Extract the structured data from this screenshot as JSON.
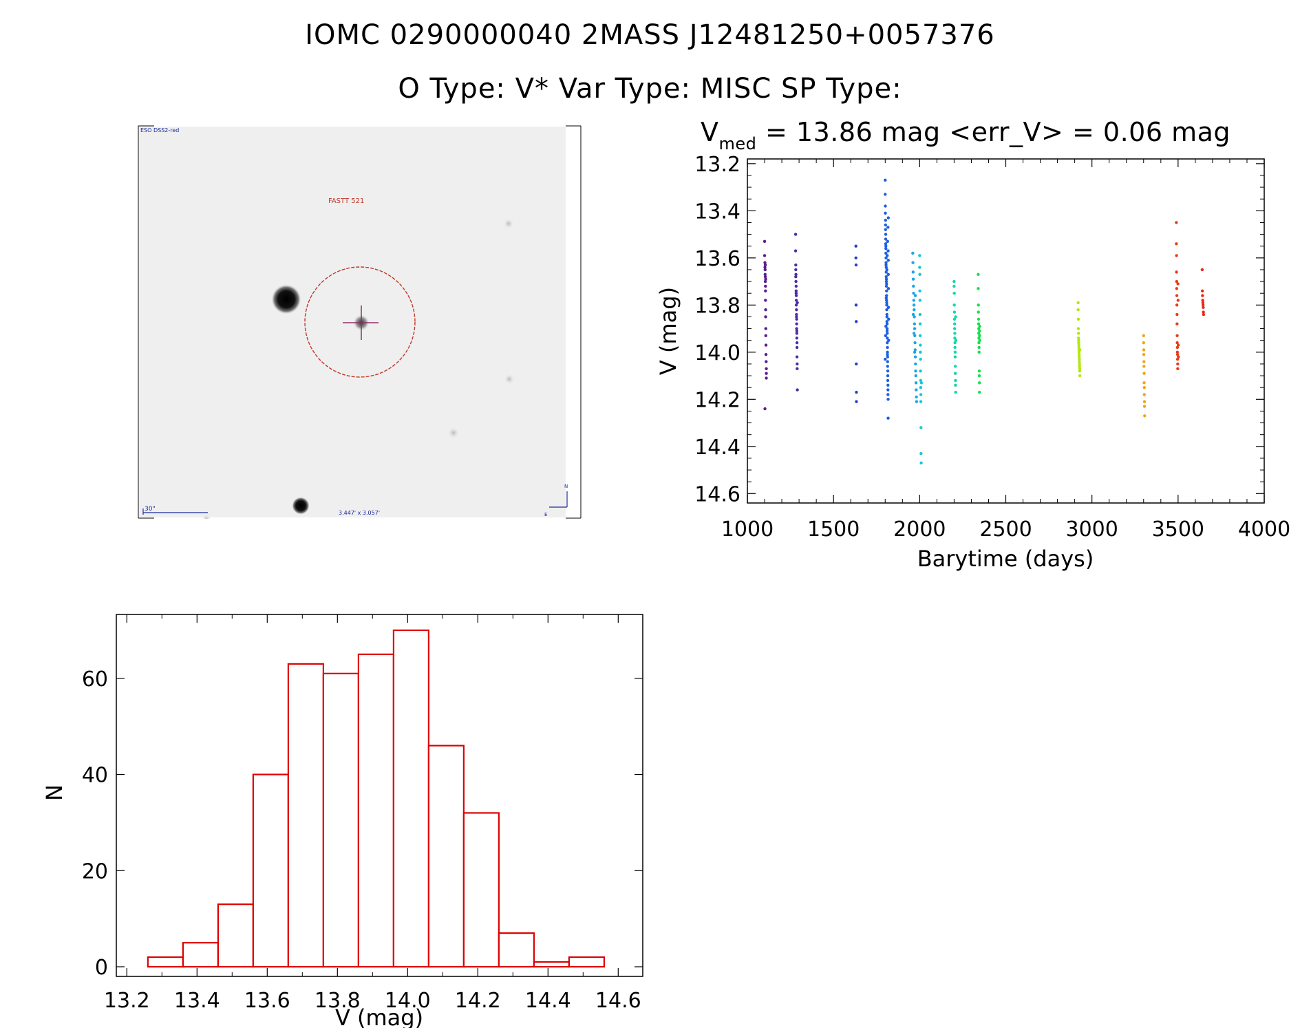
{
  "header": {
    "line1": "IOMC 0290000040    2MASS J12481250+0057376",
    "line2": "O Type: V*  Var Type: MISC  SP Type:"
  },
  "finder": {
    "survey_label": "ESO DSS2-red",
    "target_label": "FASTT 521",
    "scale_label": "30\"",
    "fov_label": "3.447' x 3.057'",
    "north_label": "N",
    "east_label": "E",
    "colors": {
      "circle": "#c0392b",
      "cross": "#8e2a6a",
      "labels": "#1a2a9a"
    }
  },
  "chart_data": [
    {
      "type": "scatter",
      "title_main": "V",
      "title_sub": "med",
      "title_rest": " = 13.86 mag <err_V> = 0.06 mag",
      "xlabel": "Barytime (days)",
      "ylabel": "V (mag)",
      "xlim": [
        1000,
        4000
      ],
      "ylim": [
        14.64,
        13.18
      ],
      "xticks": [
        "1000",
        "1500",
        "2000",
        "2500",
        "3000",
        "3500",
        "4000"
      ],
      "yticks": [
        "13.2",
        "13.4",
        "13.6",
        "13.8",
        "14.0",
        "14.2",
        "14.4",
        "14.6"
      ],
      "series": [
        {
          "color": "#5a1e8c",
          "x": [
            1100,
            1100,
            1102,
            1102,
            1103,
            1103,
            1104,
            1104,
            1105,
            1105,
            1105,
            1106,
            1106,
            1107,
            1107,
            1108,
            1108,
            1109,
            1110,
            1110,
            1110,
            1102,
            1104,
            1106
          ],
          "y": [
            13.53,
            13.59,
            13.62,
            13.64,
            13.65,
            13.67,
            13.68,
            13.7,
            13.72,
            13.74,
            13.78,
            13.82,
            13.85,
            13.9,
            13.93,
            13.97,
            14.01,
            14.04,
            14.07,
            14.09,
            14.11,
            14.24,
            13.63,
            13.69
          ]
        },
        {
          "color": "#4a2ea8",
          "x": [
            1280,
            1280,
            1281,
            1281,
            1282,
            1282,
            1283,
            1283,
            1284,
            1284,
            1284,
            1285,
            1285,
            1286,
            1286,
            1286,
            1287,
            1287,
            1288,
            1288,
            1288,
            1289,
            1289,
            1290,
            1290,
            1281,
            1283,
            1285,
            1287
          ],
          "y": [
            13.5,
            13.57,
            13.63,
            13.65,
            13.67,
            13.7,
            13.72,
            13.74,
            13.76,
            13.78,
            13.8,
            13.82,
            13.84,
            13.86,
            13.88,
            13.9,
            13.92,
            13.94,
            13.96,
            13.98,
            14.02,
            14.05,
            14.07,
            14.16,
            13.79,
            13.68,
            13.75,
            13.85,
            13.91
          ]
        },
        {
          "color": "#2a3fc8",
          "x": [
            1630,
            1630,
            1631,
            1631,
            1632,
            1632,
            1633,
            1633
          ],
          "y": [
            13.55,
            13.6,
            13.63,
            13.8,
            13.87,
            14.05,
            14.17,
            14.21
          ]
        },
        {
          "color": "#1c5fe0",
          "x": [
            1800,
            1800,
            1801,
            1801,
            1802,
            1802,
            1802,
            1803,
            1803,
            1803,
            1804,
            1804,
            1804,
            1805,
            1805,
            1805,
            1806,
            1806,
            1806,
            1807,
            1807,
            1807,
            1808,
            1808,
            1808,
            1809,
            1809,
            1809,
            1810,
            1810,
            1810,
            1811,
            1811,
            1811,
            1812,
            1812,
            1812,
            1813,
            1813,
            1813,
            1814,
            1814,
            1814,
            1815,
            1815,
            1815,
            1816,
            1816,
            1816,
            1817,
            1817,
            1817,
            1818,
            1818,
            1819,
            1819,
            1820,
            1820,
            1800,
            1802,
            1804,
            1806,
            1808,
            1810,
            1812,
            1814,
            1816,
            1818
          ],
          "y": [
            13.27,
            13.33,
            13.38,
            13.41,
            13.44,
            13.46,
            13.48,
            13.5,
            13.52,
            13.54,
            13.55,
            13.56,
            13.58,
            13.6,
            13.62,
            13.63,
            13.64,
            13.66,
            13.68,
            13.69,
            13.7,
            13.72,
            13.74,
            13.76,
            13.78,
            13.79,
            13.8,
            13.82,
            13.84,
            13.85,
            13.87,
            13.88,
            13.9,
            13.91,
            13.92,
            13.94,
            13.96,
            13.98,
            14.0,
            14.01,
            14.02,
            14.04,
            14.06,
            14.08,
            14.1,
            14.12,
            14.14,
            14.16,
            14.18,
            14.2,
            14.28,
            13.57,
            13.61,
            13.67,
            13.73,
            13.81,
            13.86,
            13.95,
            14.03,
            13.93,
            13.89,
            13.77,
            13.71,
            13.65,
            13.59,
            13.53,
            13.47,
            13.43
          ]
        },
        {
          "color": "#1aa6e6",
          "x": [
            1960,
            1961,
            1962,
            1963,
            1964,
            1965,
            1966,
            1967,
            1968,
            1969,
            1970,
            1971,
            1972,
            1973,
            1974,
            1975,
            1976,
            1977,
            1978,
            1979,
            1980,
            1981,
            1982,
            1963,
            1967,
            1971,
            1975
          ],
          "y": [
            13.58,
            13.62,
            13.66,
            13.69,
            13.72,
            13.75,
            13.78,
            13.8,
            13.82,
            13.85,
            13.88,
            13.9,
            13.93,
            13.96,
            13.99,
            14.02,
            14.05,
            14.08,
            14.1,
            14.13,
            14.16,
            14.19,
            14.21,
            13.84,
            13.92,
            14.0,
            13.76
          ]
        },
        {
          "color": "#12c8d8",
          "x": [
            2000,
            2000,
            2001,
            2001,
            2002,
            2002,
            2003,
            2003,
            2004,
            2004,
            2005,
            2005,
            2006,
            2006,
            2007,
            2007,
            2008,
            2008,
            2009,
            2010
          ],
          "y": [
            13.59,
            13.64,
            13.67,
            13.74,
            13.78,
            13.84,
            13.88,
            13.93,
            13.97,
            14.0,
            14.03,
            14.08,
            14.12,
            14.15,
            14.18,
            14.21,
            14.32,
            14.43,
            14.47,
            14.13
          ]
        },
        {
          "color": "#12d8a8",
          "x": [
            2200,
            2200,
            2201,
            2201,
            2202,
            2202,
            2203,
            2203,
            2204,
            2204,
            2205,
            2205,
            2206,
            2206,
            2207,
            2207,
            2208,
            2208,
            2209,
            2209,
            2210
          ],
          "y": [
            13.7,
            13.72,
            13.75,
            13.8,
            13.83,
            13.86,
            13.88,
            13.9,
            13.92,
            13.94,
            13.96,
            13.98,
            14.0,
            14.02,
            14.06,
            14.09,
            14.12,
            14.14,
            14.17,
            13.85,
            13.95
          ]
        },
        {
          "color": "#18e04a",
          "x": [
            2340,
            2340,
            2341,
            2341,
            2342,
            2342,
            2343,
            2343,
            2344,
            2344,
            2345,
            2345,
            2346,
            2346,
            2347,
            2347,
            2348,
            2348,
            2349,
            2349
          ],
          "y": [
            13.67,
            13.73,
            13.8,
            13.83,
            13.86,
            13.88,
            13.9,
            13.92,
            13.94,
            13.96,
            13.98,
            14.0,
            14.08,
            14.1,
            14.13,
            14.17,
            13.91,
            13.93,
            13.89,
            13.95
          ]
        },
        {
          "color": "#b4e610",
          "x": [
            2920,
            2920,
            2921,
            2921,
            2922,
            2922,
            2923,
            2923,
            2924,
            2924,
            2925,
            2925,
            2926,
            2926,
            2927,
            2927,
            2928,
            2928,
            2929,
            2929,
            2930,
            2930
          ],
          "y": [
            13.79,
            13.82,
            13.86,
            13.9,
            13.92,
            13.94,
            13.95,
            13.96,
            13.97,
            13.98,
            13.99,
            14.0,
            14.01,
            14.02,
            14.03,
            14.04,
            14.05,
            14.06,
            14.07,
            14.08,
            14.1,
            13.99
          ]
        },
        {
          "color": "#f0a418",
          "x": [
            3300,
            3300,
            3301,
            3301,
            3302,
            3302,
            3303,
            3303,
            3304,
            3304,
            3305,
            3305,
            3306
          ],
          "y": [
            13.93,
            13.96,
            13.99,
            14.01,
            14.04,
            14.06,
            14.09,
            14.13,
            14.15,
            14.18,
            14.21,
            14.23,
            14.27
          ]
        },
        {
          "color": "#e83c18",
          "x": [
            3490,
            3490,
            3491,
            3491,
            3492,
            3492,
            3493,
            3493,
            3494,
            3494,
            3495,
            3495,
            3496,
            3496,
            3497,
            3497,
            3498,
            3498,
            3499,
            3500,
            3501,
            3502
          ],
          "y": [
            13.45,
            13.54,
            13.59,
            13.66,
            13.7,
            13.73,
            13.76,
            13.8,
            13.84,
            13.88,
            13.93,
            13.96,
            13.98,
            14.0,
            14.01,
            14.03,
            14.05,
            14.07,
            13.71,
            13.78,
            13.97,
            14.02
          ]
        },
        {
          "color": "#e82818",
          "x": [
            3640,
            3641,
            3642,
            3643,
            3644,
            3645,
            3646,
            3647,
            3648
          ],
          "y": [
            13.65,
            13.74,
            13.76,
            13.78,
            13.79,
            13.8,
            13.81,
            13.83,
            13.84
          ]
        }
      ]
    },
    {
      "type": "bar",
      "subtype": "histogram",
      "xlabel": "V (mag)",
      "ylabel": "N",
      "xlim": [
        13.17,
        14.67
      ],
      "ylim": [
        0,
        73
      ],
      "xticks": [
        "13.2",
        "13.4",
        "13.6",
        "13.8",
        "14.0",
        "14.2",
        "14.4",
        "14.6"
      ],
      "yticks": [
        "0",
        "20",
        "40",
        "60"
      ],
      "bin_edges": [
        13.26,
        13.36,
        13.46,
        13.56,
        13.66,
        13.76,
        13.86,
        13.96,
        14.06,
        14.16,
        14.26,
        14.36,
        14.46,
        14.56
      ],
      "values": [
        2,
        5,
        13,
        40,
        63,
        61,
        65,
        70,
        46,
        32,
        7,
        1,
        2
      ],
      "bar_color": "#e00000"
    }
  ]
}
